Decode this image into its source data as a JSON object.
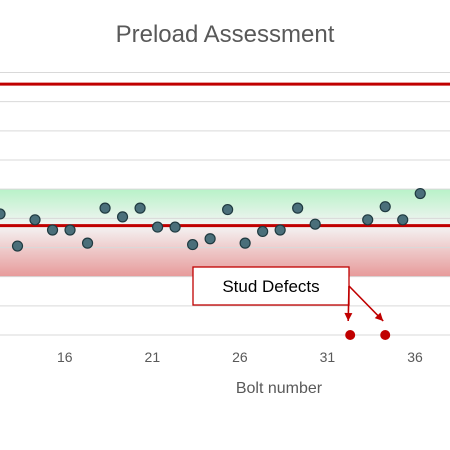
{
  "chart_data": {
    "type": "scatter",
    "title": "Preload Assessment",
    "xlabel": "Bolt number",
    "ylabel": "",
    "xlim": [
      12.3,
      38.0
    ],
    "ylim": [
      0,
      9.6
    ],
    "x_ticks": [
      16,
      21,
      26,
      31,
      36
    ],
    "grid": true,
    "upper_limit_line": 8.6,
    "center_line": 3.75,
    "bands": [
      {
        "name": "green-band",
        "from": 3.75,
        "to": 5.0,
        "color_top": "#b8f2c8",
        "color_bottom": "#f4f4f4"
      },
      {
        "name": "red-band",
        "from": 2.0,
        "to": 3.75,
        "color_top": "#f4f4f4",
        "color_bottom": "#e79a9a"
      }
    ],
    "series": [
      {
        "marker_color": "#4a6f7a",
        "points": [
          {
            "x": 12.3,
            "y": 4.15
          },
          {
            "x": 13.3,
            "y": 3.05
          },
          {
            "x": 14.3,
            "y": 3.95
          },
          {
            "x": 15.3,
            "y": 3.6
          },
          {
            "x": 16.3,
            "y": 3.6
          },
          {
            "x": 17.3,
            "y": 3.15
          },
          {
            "x": 18.3,
            "y": 4.35
          },
          {
            "x": 19.3,
            "y": 4.05
          },
          {
            "x": 20.3,
            "y": 4.35
          },
          {
            "x": 21.3,
            "y": 3.7
          },
          {
            "x": 22.3,
            "y": 3.7
          },
          {
            "x": 23.3,
            "y": 3.1
          },
          {
            "x": 24.3,
            "y": 3.3
          },
          {
            "x": 25.3,
            "y": 4.3
          },
          {
            "x": 26.3,
            "y": 3.15
          },
          {
            "x": 27.3,
            "y": 3.55
          },
          {
            "x": 28.3,
            "y": 3.6
          },
          {
            "x": 29.3,
            "y": 4.35
          },
          {
            "x": 30.3,
            "y": 3.8
          },
          {
            "x": 33.3,
            "y": 3.95
          },
          {
            "x": 34.3,
            "y": 4.4
          },
          {
            "x": 35.3,
            "y": 3.95
          },
          {
            "x": 36.3,
            "y": 4.85
          }
        ]
      },
      {
        "marker_color": "#c00000",
        "points": [
          {
            "x": 32.3,
            "y": 0.0
          },
          {
            "x": 34.3,
            "y": 0.0
          }
        ]
      }
    ],
    "annotations": [
      {
        "text": "Stud Defects",
        "points_to": [
          {
            "x": 32.3,
            "y": 0.0
          },
          {
            "x": 34.3,
            "y": 0.0
          }
        ]
      }
    ],
    "colors": {
      "limit_line": "#c00000",
      "grid": "#d9d9d9",
      "text": "#595959"
    }
  }
}
